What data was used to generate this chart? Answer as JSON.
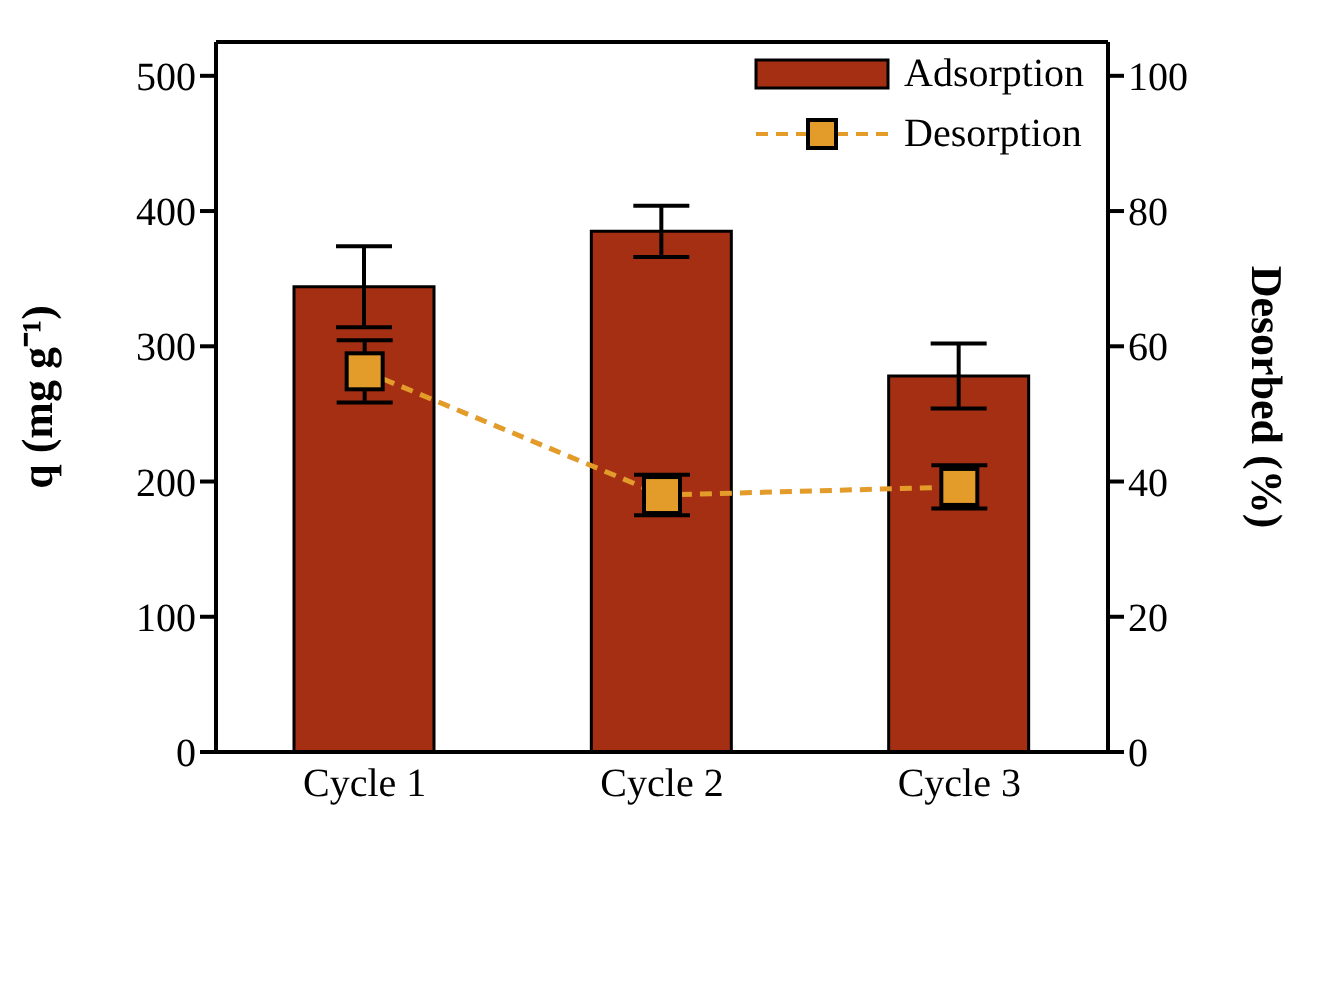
{
  "chart_data": {
    "type": "bar",
    "categories": [
      "Cycle 1",
      "Cycle 2",
      "Cycle 3"
    ],
    "ylabel": "q (mg g⁻¹)",
    "y2label": "Desorbed (%)",
    "ylim": [
      0,
      525
    ],
    "yticks": [
      0,
      100,
      200,
      300,
      400,
      500
    ],
    "y2lim": [
      0,
      105
    ],
    "y2ticks": [
      0,
      20,
      40,
      60,
      80,
      100
    ],
    "series": [
      {
        "name": "Adsorption",
        "color": "#a52f12",
        "values": [
          344,
          385,
          278
        ],
        "errors": [
          30,
          19,
          24
        ]
      },
      {
        "name": "Desorption",
        "type": "line",
        "axis": "y2",
        "color": "#e39b2a",
        "values": [
          56.3,
          38.0,
          39.2
        ],
        "errors": [
          4.6,
          3,
          3.2
        ]
      }
    ],
    "marker": "square",
    "line_style": "dashed",
    "legend": "top right",
    "grid": false
  }
}
